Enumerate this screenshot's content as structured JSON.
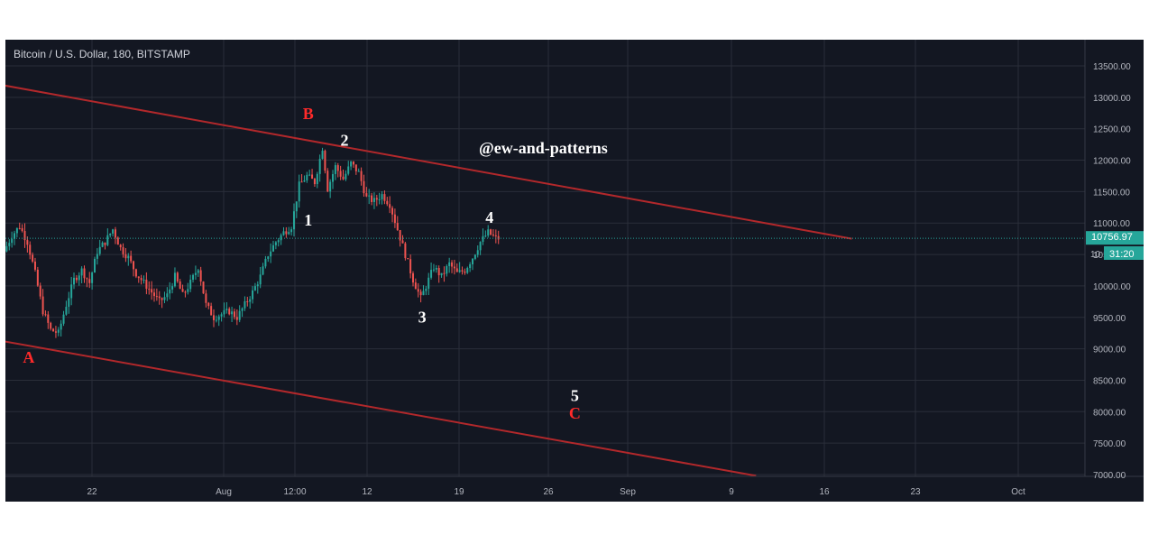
{
  "header": {
    "title": "Bitcoin / U.S. Dollar, 180, BITSTAMP"
  },
  "watermark": "@ew-and-patterns",
  "price_badge": {
    "value": "10756.97",
    "countdown_prefix": "10",
    "countdown": "31:20",
    "color": "#26a69a"
  },
  "colors": {
    "background": "#131722",
    "grid": "#2a2e39",
    "up": "#26a69a",
    "down": "#ef5350",
    "channel": "#b2282b",
    "label_red": "#ff2a2a",
    "label_white": "#ffffff"
  },
  "chart_data": {
    "type": "candlestick",
    "title": "Bitcoin / U.S. Dollar, 180, BITSTAMP",
    "y_ticks": [
      "13500.00",
      "13000.00",
      "12500.00",
      "12000.00",
      "11500.00",
      "11000.00",
      "10500.00",
      "10000.00",
      "9500.00",
      "9000.00",
      "8500.00",
      "8000.00",
      "7500.00",
      "7000.00"
    ],
    "x_ticks": [
      "22",
      "Aug",
      "12:00",
      "12",
      "19",
      "26",
      "Sep",
      "9",
      "16",
      "23",
      "Oct"
    ],
    "ylim": [
      7000,
      13500
    ],
    "grid": true,
    "last_price": 10756.97,
    "price_path": [
      {
        "x": 0,
        "y": 10550
      },
      {
        "x": 3,
        "y": 10800
      },
      {
        "x": 6,
        "y": 10950
      },
      {
        "x": 9,
        "y": 10700
      },
      {
        "x": 12,
        "y": 10200
      },
      {
        "x": 15,
        "y": 9600
      },
      {
        "x": 18,
        "y": 9300
      },
      {
        "x": 21,
        "y": 9250
      },
      {
        "x": 24,
        "y": 9700
      },
      {
        "x": 27,
        "y": 10100
      },
      {
        "x": 30,
        "y": 10250
      },
      {
        "x": 33,
        "y": 10050
      },
      {
        "x": 36,
        "y": 10550
      },
      {
        "x": 39,
        "y": 10700
      },
      {
        "x": 42,
        "y": 10900
      },
      {
        "x": 45,
        "y": 10600
      },
      {
        "x": 48,
        "y": 10450
      },
      {
        "x": 51,
        "y": 10200
      },
      {
        "x": 54,
        "y": 10050
      },
      {
        "x": 57,
        "y": 9900
      },
      {
        "x": 60,
        "y": 9750
      },
      {
        "x": 63,
        "y": 9850
      },
      {
        "x": 66,
        "y": 10150
      },
      {
        "x": 69,
        "y": 9850
      },
      {
        "x": 72,
        "y": 10050
      },
      {
        "x": 75,
        "y": 10300
      },
      {
        "x": 78,
        "y": 9700
      },
      {
        "x": 81,
        "y": 9500
      },
      {
        "x": 84,
        "y": 9550
      },
      {
        "x": 87,
        "y": 9600
      },
      {
        "x": 90,
        "y": 9500
      },
      {
        "x": 93,
        "y": 9700
      },
      {
        "x": 96,
        "y": 9900
      },
      {
        "x": 99,
        "y": 10150
      },
      {
        "x": 102,
        "y": 10500
      },
      {
        "x": 105,
        "y": 10700
      },
      {
        "x": 108,
        "y": 10850
      },
      {
        "x": 111,
        "y": 10950
      },
      {
        "x": 114,
        "y": 11600
      },
      {
        "x": 117,
        "y": 11750
      },
      {
        "x": 120,
        "y": 11650
      },
      {
        "x": 123,
        "y": 12200
      },
      {
        "x": 125,
        "y": 11550
      },
      {
        "x": 128,
        "y": 11900
      },
      {
        "x": 131,
        "y": 11700
      },
      {
        "x": 134,
        "y": 11950
      },
      {
        "x": 137,
        "y": 11800
      },
      {
        "x": 140,
        "y": 11400
      },
      {
        "x": 143,
        "y": 11350
      },
      {
        "x": 146,
        "y": 11450
      },
      {
        "x": 149,
        "y": 11300
      },
      {
        "x": 152,
        "y": 10900
      },
      {
        "x": 155,
        "y": 10500
      },
      {
        "x": 158,
        "y": 10100
      },
      {
        "x": 161,
        "y": 9800
      },
      {
        "x": 163,
        "y": 10000
      },
      {
        "x": 166,
        "y": 10300
      },
      {
        "x": 169,
        "y": 10150
      },
      {
        "x": 172,
        "y": 10350
      },
      {
        "x": 175,
        "y": 10200
      },
      {
        "x": 178,
        "y": 10250
      },
      {
        "x": 181,
        "y": 10450
      },
      {
        "x": 184,
        "y": 10700
      },
      {
        "x": 187,
        "y": 10850
      },
      {
        "x": 190,
        "y": 10756.97
      }
    ],
    "x_range": [
      0,
      417
    ],
    "channel_lines": [
      {
        "name": "upper",
        "points": [
          {
            "x": -2,
            "y": 13200
          },
          {
            "x": 327,
            "y": 10750
          }
        ]
      },
      {
        "name": "lower",
        "points": [
          {
            "x": -2,
            "y": 9130
          },
          {
            "x": 290,
            "y": 6980
          }
        ]
      }
    ],
    "annotations": [
      {
        "text": "A",
        "x": 9,
        "y": 8780,
        "color": "red"
      },
      {
        "text": "B",
        "x": 117,
        "y": 12650,
        "color": "red"
      },
      {
        "text": "1",
        "x": 117,
        "y": 10960,
        "color": "white"
      },
      {
        "text": "2",
        "x": 131,
        "y": 12230,
        "color": "white"
      },
      {
        "text": "3",
        "x": 161,
        "y": 9420,
        "color": "white"
      },
      {
        "text": "4",
        "x": 187,
        "y": 11000,
        "color": "white"
      },
      {
        "text": "5",
        "x": 220,
        "y": 8170,
        "color": "white"
      },
      {
        "text": "C",
        "x": 220,
        "y": 7890,
        "color": "red"
      }
    ]
  }
}
